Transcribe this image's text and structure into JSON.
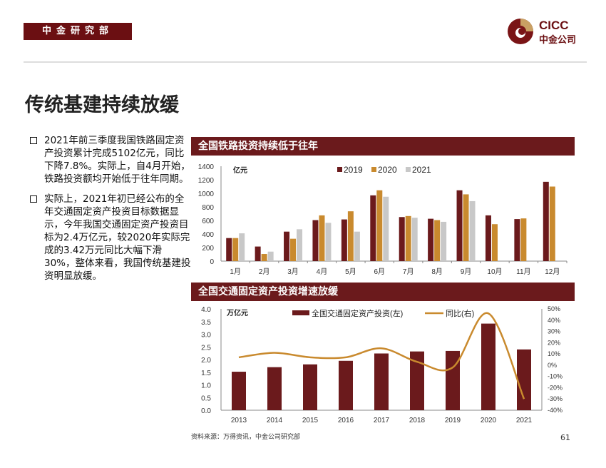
{
  "header": {
    "department": "中金研究部",
    "logo_en": "CICC",
    "logo_cn": "中金公司"
  },
  "page_title": "传统基建持续放缓",
  "bullets": [
    "2021年前三季度我国铁路固定资产投资累计完成5102亿元，同比下降7.8%。实际上，自4月开始，铁路投资额均开始低于往年同期。",
    "实际上，2021年初已经公布的全年交通固定资产投资目标数据显示，今年我国交通固定资产投资目标为2.4万亿元，较2020年实际完成的3.42万元同比大幅下滑30%，整体来看，我国传统基建投资明显放缓。"
  ],
  "chart_data": [
    {
      "type": "bar",
      "title": "全国铁路投资持续低于往年",
      "ylabel": "亿元",
      "ylim": [
        0,
        1400
      ],
      "yticks": [
        0,
        200,
        400,
        600,
        800,
        1000,
        1200,
        1400
      ],
      "categories": [
        "1月",
        "2月",
        "3月",
        "4月",
        "5月",
        "6月",
        "7月",
        "8月",
        "9月",
        "10月",
        "11月",
        "12月"
      ],
      "legend_position": "top",
      "series": [
        {
          "name": "2019",
          "color": "#6b1a1c",
          "values": [
            340,
            215,
            435,
            605,
            615,
            970,
            650,
            625,
            1045,
            675,
            620,
            1170
          ]
        },
        {
          "name": "2020",
          "color": "#c98a2e",
          "values": [
            340,
            105,
            330,
            675,
            735,
            1045,
            665,
            605,
            985,
            545,
            630,
            1100
          ]
        },
        {
          "name": "2021",
          "color": "#c8c8c8",
          "values": [
            410,
            140,
            470,
            565,
            435,
            950,
            640,
            580,
            885,
            null,
            null,
            null
          ]
        }
      ]
    },
    {
      "type": "bar+line",
      "title": "全国交通固定资产投资增速放缓",
      "ylabel": "万亿元",
      "ylim": [
        0,
        4.0
      ],
      "yticks": [
        "0.0",
        "0.5",
        "1.0",
        "1.5",
        "2.0",
        "2.5",
        "3.0",
        "3.5",
        "4.0"
      ],
      "y2lim": [
        -40,
        50
      ],
      "y2ticks": [
        "-40%",
        "-30%",
        "-20%",
        "-10%",
        "0%",
        "10%",
        "20%",
        "30%",
        "40%",
        "50%"
      ],
      "categories": [
        "2013",
        "2014",
        "2015",
        "2016",
        "2017",
        "2018",
        "2019",
        "2020",
        "2021"
      ],
      "legend_position": "top",
      "series": [
        {
          "name": "全国交通固定资产投资(左)",
          "type": "bar",
          "color": "#6b1a1c",
          "values": [
            1.52,
            1.7,
            1.81,
            1.95,
            2.24,
            2.32,
            2.34,
            3.42,
            2.4
          ]
        },
        {
          "name": "同比(右)",
          "type": "line",
          "color": "#c98a2e",
          "values": [
            7,
            11,
            7,
            7,
            15,
            3,
            -2,
            46,
            -30
          ]
        }
      ]
    }
  ],
  "footer": {
    "source": "资料来源：万得资讯，中金公司研究部",
    "page_number": "61"
  }
}
